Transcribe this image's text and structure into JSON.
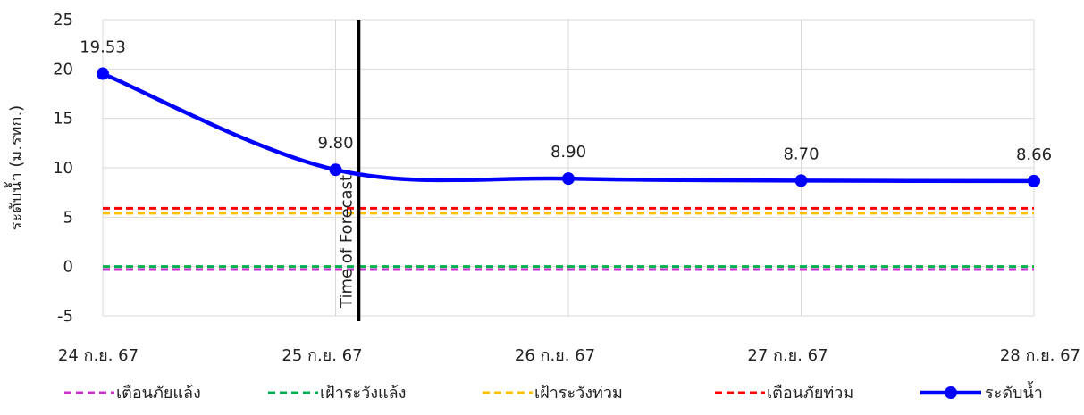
{
  "chart_data": {
    "type": "line",
    "categories": [
      "24 ก.ย. 67",
      "25 ก.ย. 67",
      "26 ก.ย. 67",
      "27 ก.ย. 67",
      "28 ก.ย. 67"
    ],
    "ylabel": "ระดับน้ำ (ม.รทก.)",
    "ylim": [
      -5,
      25
    ],
    "yticks": [
      -5,
      0,
      5,
      10,
      15,
      20,
      25
    ],
    "grid": true,
    "legend_position": "bottom",
    "series": [
      {
        "name": "ระดับน้ำ",
        "values": [
          19.53,
          9.8,
          8.9,
          8.7,
          8.66
        ],
        "labels": [
          "19.53",
          "9.80",
          "8.90",
          "8.70",
          "8.66"
        ],
        "color": "#0000ff",
        "style": "solid-marker"
      }
    ],
    "thresholds": [
      {
        "name": "เตือนภัยแล้ง",
        "value": -0.3,
        "color": "#cc33cc"
      },
      {
        "name": "เฝ้าระวังแล้ง",
        "value": 0,
        "color": "#00b050"
      },
      {
        "name": "เฝ้าระวังท่วม",
        "value": 5.4,
        "color": "#ffc000"
      },
      {
        "name": "เตือนภัยท่วม",
        "value": 5.9,
        "color": "#ff0000"
      }
    ],
    "forecast_marker": {
      "label": "Time of Forecast",
      "x_value": 1.1,
      "color": "#000000"
    }
  }
}
